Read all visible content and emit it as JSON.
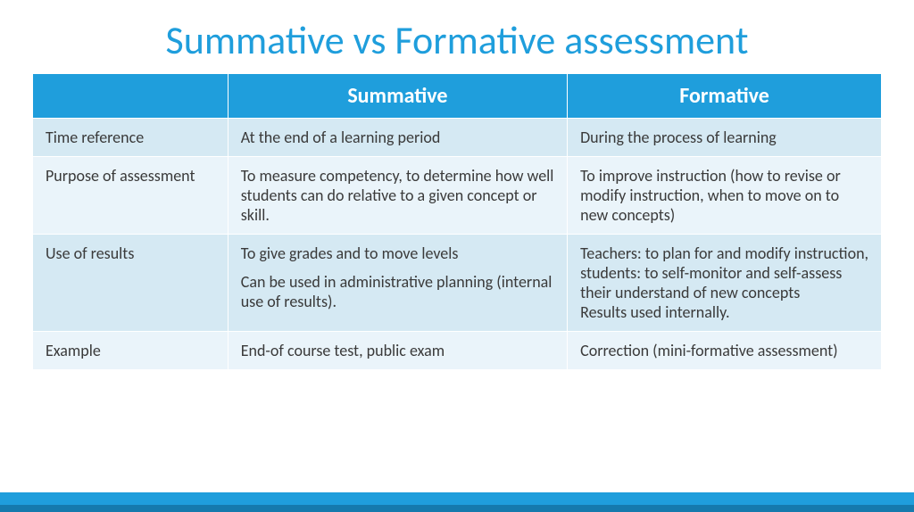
{
  "title": "Summative vs Formative assessment",
  "colors": {
    "title": "#1f9edc",
    "header_bg": "#1f9edc",
    "header_text": "#ffffff",
    "row_odd_bg": "#d5e9f3",
    "row_even_bg": "#eaf4fa",
    "cell_text": "#3a3a3a",
    "footer_top": "#1f9edc",
    "footer_bottom": "#157aad"
  },
  "typography": {
    "title_fontsize": 44,
    "header_fontsize": 24,
    "cell_fontsize": 18,
    "font_family": "Calibri"
  },
  "table": {
    "columns": [
      "",
      "Summative",
      "Formative"
    ],
    "col_widths_pct": [
      23,
      40,
      37
    ],
    "rows": [
      {
        "label": "Time reference",
        "summative": "At the end of a learning period",
        "formative": "During the process of learning"
      },
      {
        "label": "Purpose of assessment",
        "summative": "To measure competency, to determine how well students can do relative to a given concept or skill.",
        "formative": "To improve instruction (how to revise or modify instruction, when to move on to new concepts)"
      },
      {
        "label": "Use of results",
        "summative_line1": "To give grades and to move levels",
        "summative_line2": "Can be used in administrative planning (internal use of results).",
        "formative": "Teachers: to plan for and modify instruction, students: to self-monitor and self-assess their understand of new concepts\nResults used internally."
      },
      {
        "label": "Example",
        "summative": "End-of course test, public exam",
        "formative": "Correction (mini-formative assessment)"
      }
    ]
  }
}
